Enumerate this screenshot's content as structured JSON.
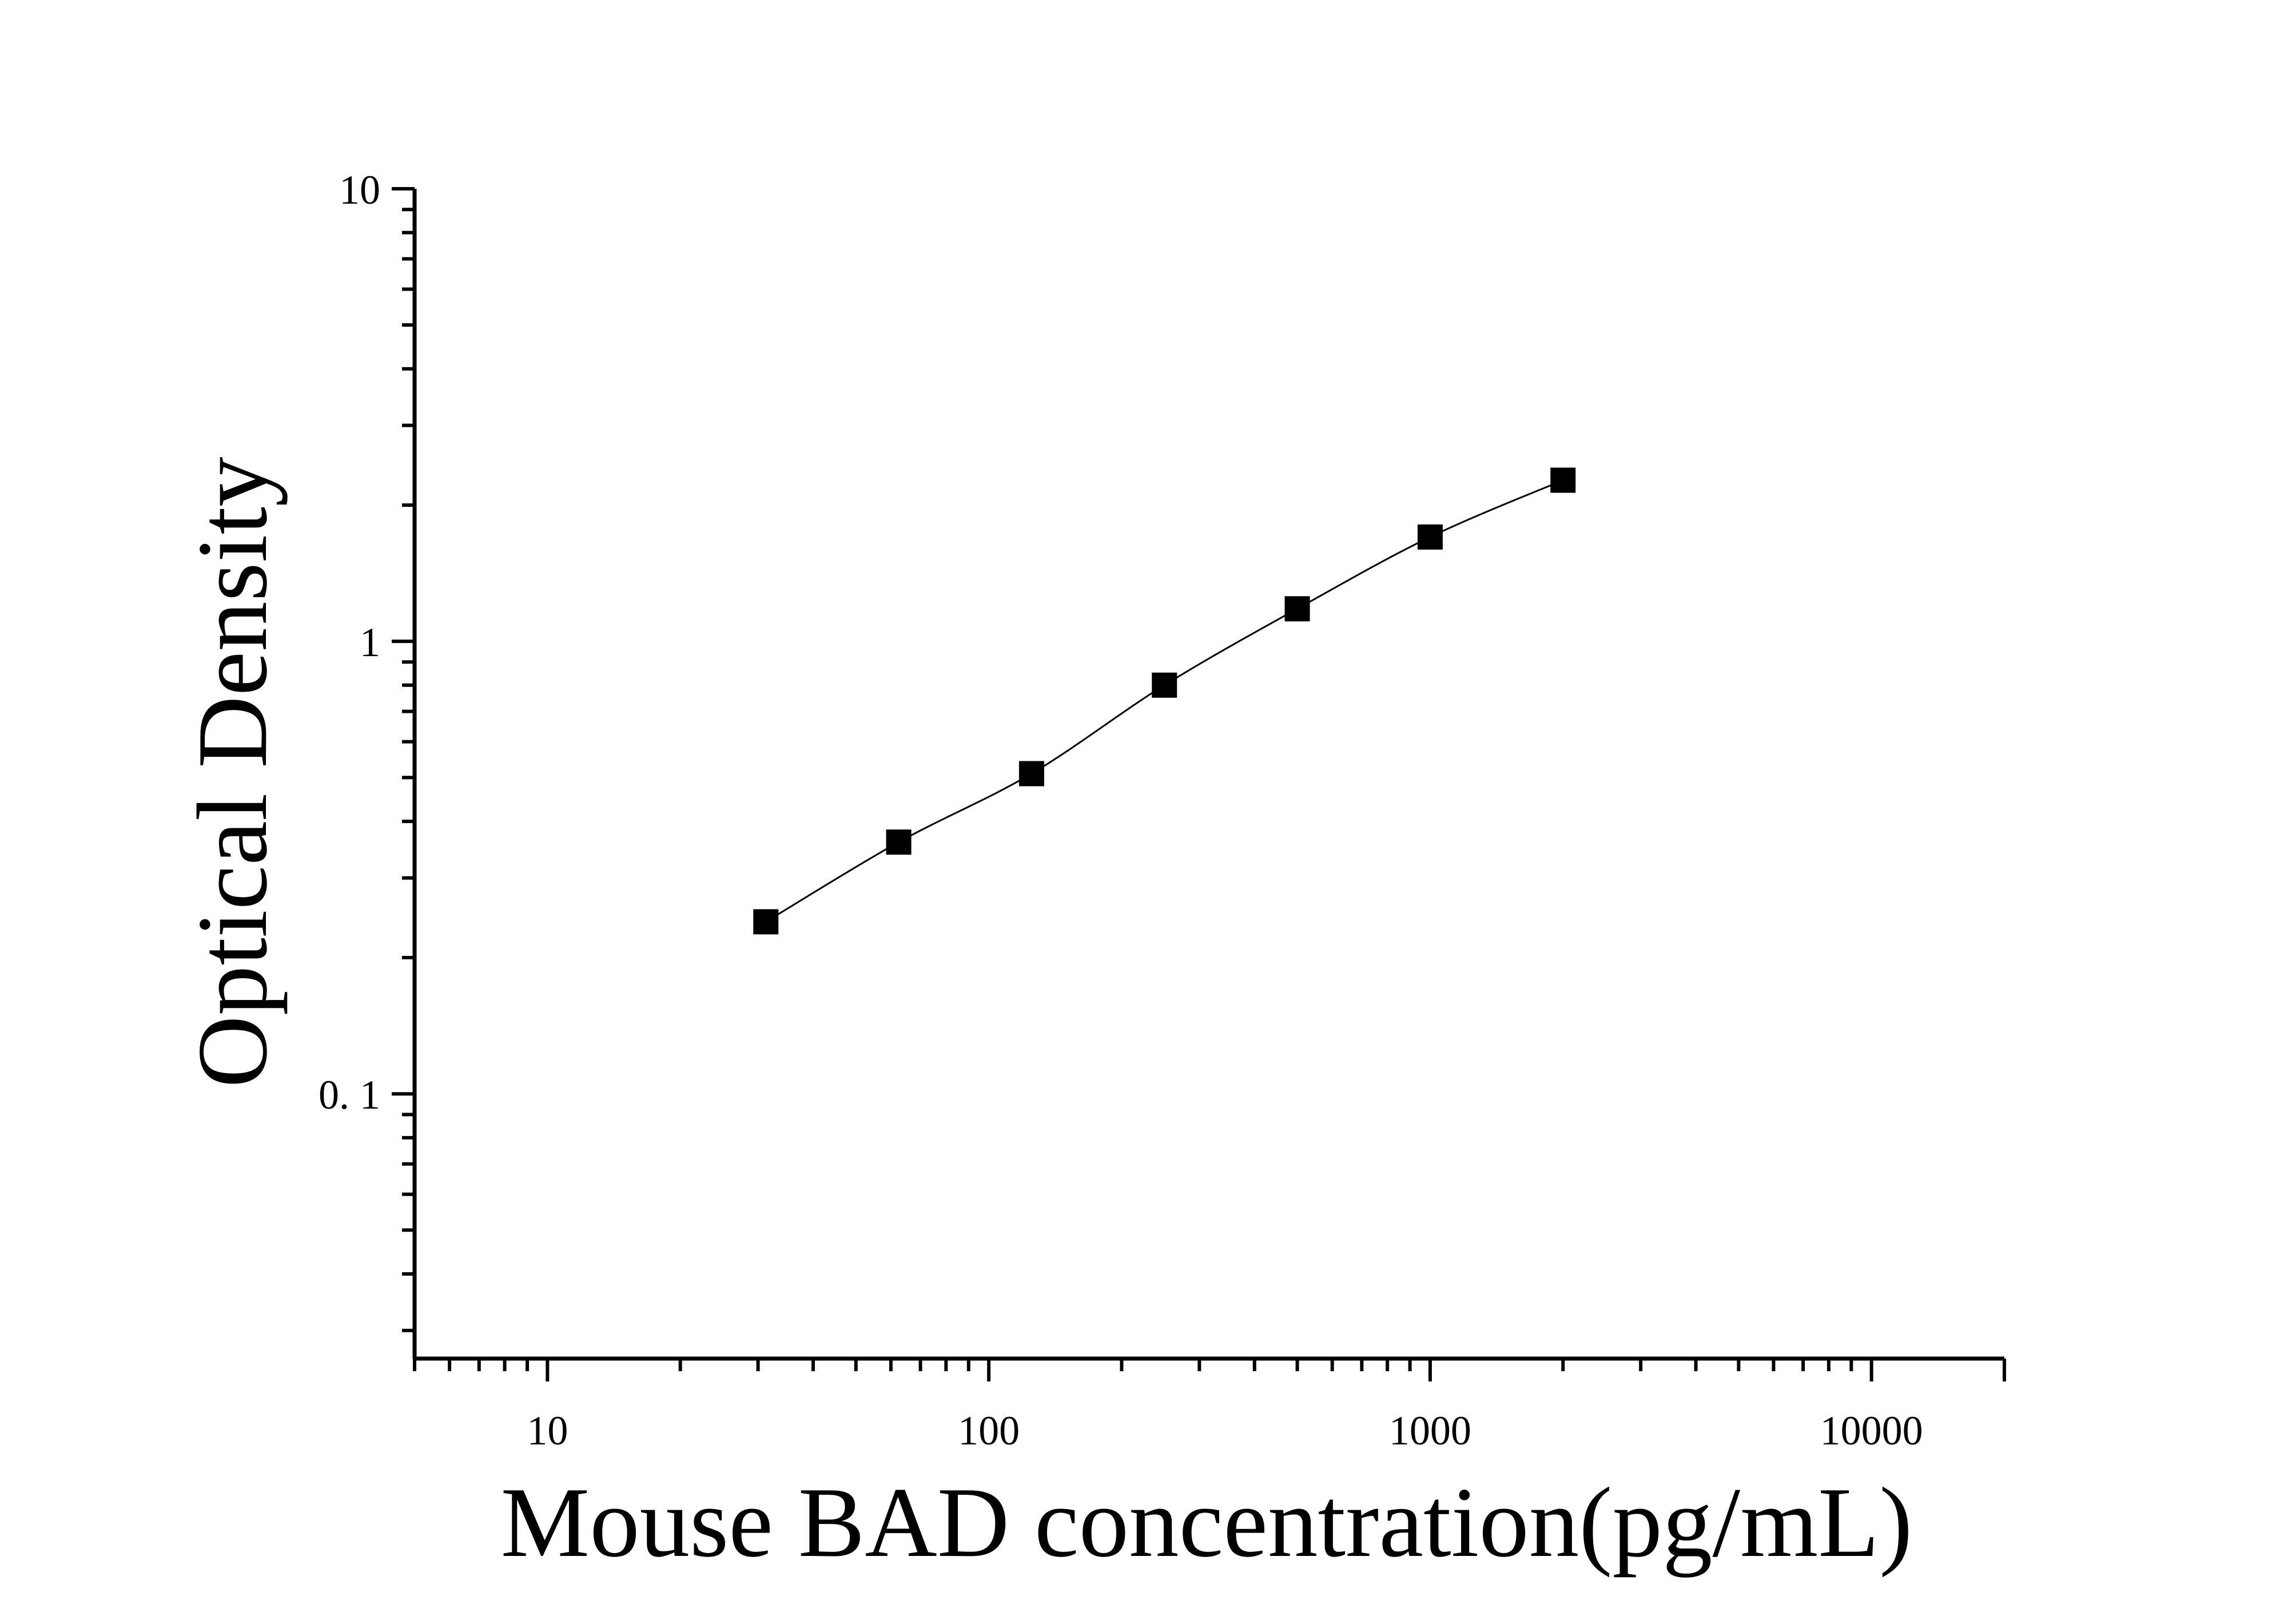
{
  "chart_data": {
    "type": "scatter",
    "title": "",
    "xlabel": "Mouse BAD concentration(pg/mL)",
    "ylabel": "Optical Density",
    "x_scale": "log",
    "y_scale": "log",
    "xlim": [
      5,
      20000
    ],
    "ylim": [
      0.026,
      10
    ],
    "x_ticks": [
      {
        "value": 10,
        "label": "10"
      },
      {
        "value": 100,
        "label": "100"
      },
      {
        "value": 1000,
        "label": "1000"
      },
      {
        "value": 10000,
        "label": "10000"
      }
    ],
    "y_ticks": [
      {
        "value": 0.1,
        "label": "0. 1"
      },
      {
        "value": 1,
        "label": "1"
      },
      {
        "value": 10,
        "label": "10"
      }
    ],
    "grid": false,
    "legend": "none",
    "marker": "square",
    "series": [
      {
        "x": [
          31.25,
          62.5,
          125,
          250,
          500,
          1000,
          2000
        ],
        "y": [
          0.24,
          0.36,
          0.51,
          0.8,
          1.18,
          1.7,
          2.27
        ]
      }
    ],
    "fit_curve": true,
    "colors": {
      "marker": "#000000",
      "line": "#000000",
      "axis": "#000000"
    }
  }
}
